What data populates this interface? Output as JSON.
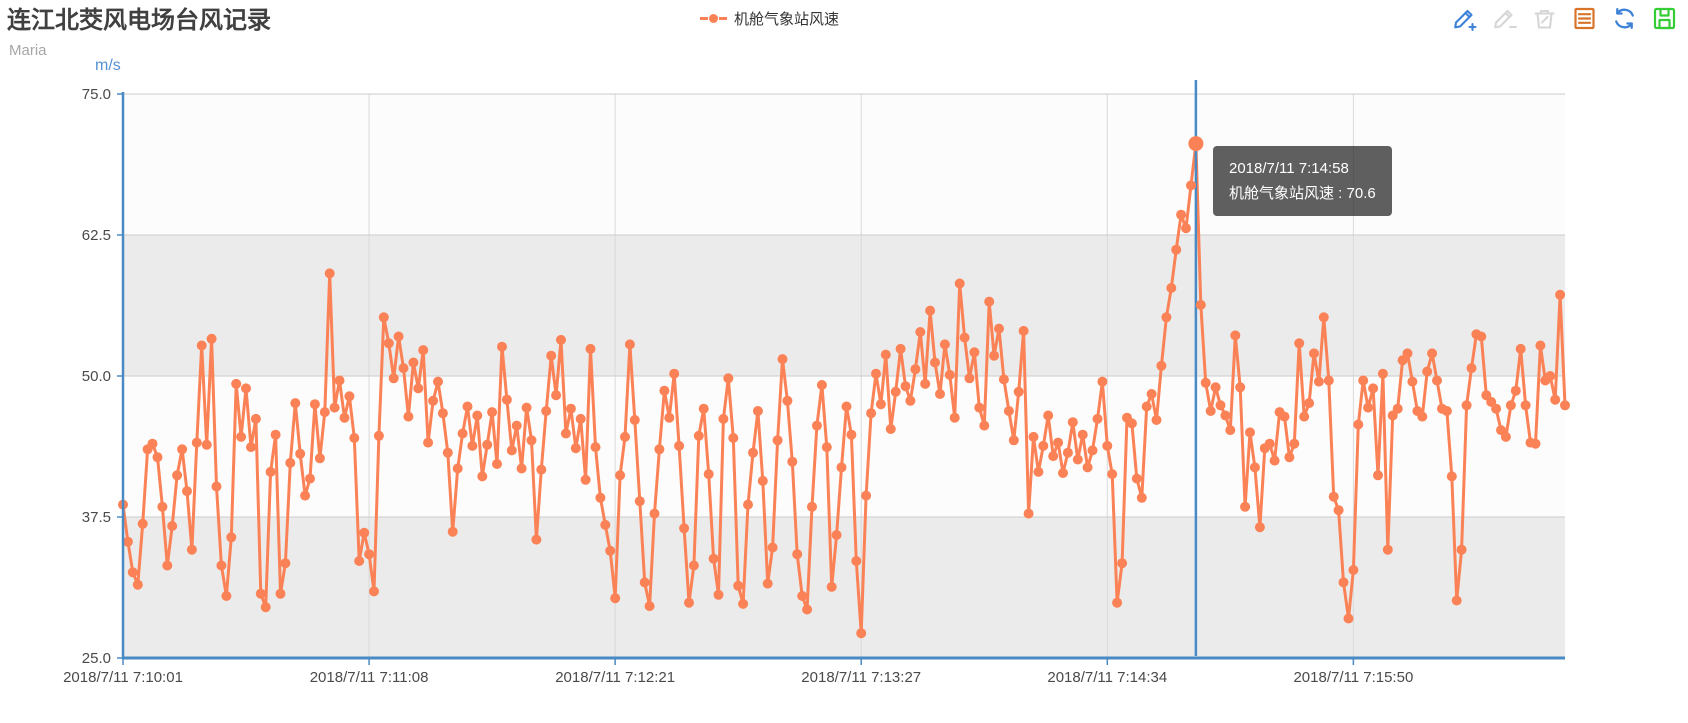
{
  "header": {
    "title": "连江北茭风电场台风记录",
    "subtitle": "Maria"
  },
  "legend": {
    "series_label": "机舱气象站风速"
  },
  "toolbar": {
    "icons": [
      {
        "name": "annotate-add-pencil-icon",
        "color": "#3e82d8"
      },
      {
        "name": "annotate-edit-pencil-icon",
        "color": "#d6d6d6"
      },
      {
        "name": "annotate-clear-trash-icon",
        "color": "#d6d6d6"
      },
      {
        "name": "data-view-icon",
        "color": "#d8742a"
      },
      {
        "name": "restore-refresh-icon",
        "color": "#3e82d8"
      },
      {
        "name": "save-image-icon",
        "color": "#35cd35"
      }
    ]
  },
  "tooltip": {
    "line1": "2018/7/11 7:14:58",
    "line2": "机舱气象站风速 : 70.6"
  },
  "colors": {
    "series": "#fb8256",
    "axis": "#4a8ac4",
    "grid_horizontal": "#cccccc",
    "grid_vertical": "#d9d9d9",
    "band_light": "#fcfcfc",
    "band_gray": "#ebebeb",
    "tick_label": "#4a4a4a",
    "pointer": "#4a8ac4",
    "tooltip_bg": "rgba(50,50,50,0.78)"
  },
  "chart_data": {
    "type": "line",
    "title": "连江北茭风电场台风记录",
    "subtitle": "Maria",
    "ylabel": "m/s",
    "legend_position": "top-center",
    "grid": {
      "split_area_alternating": true,
      "horizontal_gridlines": true,
      "vertical_gridlines": true
    },
    "y": {
      "min": 25,
      "max": 75,
      "tick_values": [
        75.0,
        62.5,
        50.0,
        37.5,
        25.0
      ],
      "tick_labels": [
        "75.0",
        "62.5",
        "50.0",
        "37.5",
        "25.0"
      ]
    },
    "x": {
      "tick_labels": [
        "2018/7/11 7:10:01",
        "2018/7/11 7:11:08",
        "2018/7/11 7:12:21",
        "2018/7/11 7:13:27",
        "2018/7/11 7:14:34",
        "2018/7/11 7:15:50"
      ],
      "tick_indices": [
        0,
        50,
        100,
        150,
        200,
        250
      ]
    },
    "highlight": {
      "index": 218,
      "time": "2018/7/11 7:14:58",
      "value": 70.6
    },
    "series": [
      {
        "name": "机舱气象站风速",
        "color": "#fb8256",
        "values": [
          38.6,
          35.3,
          32.6,
          31.5,
          36.9,
          43.5,
          44.0,
          42.8,
          38.4,
          33.2,
          36.7,
          41.2,
          43.5,
          39.8,
          34.6,
          44.1,
          52.7,
          43.9,
          53.3,
          40.2,
          33.2,
          30.5,
          35.7,
          49.3,
          44.6,
          48.9,
          43.7,
          46.2,
          30.7,
          29.5,
          41.5,
          44.8,
          30.7,
          33.4,
          42.3,
          47.6,
          43.1,
          39.4,
          40.9,
          47.5,
          42.7,
          46.8,
          59.1,
          47.2,
          49.6,
          46.3,
          48.2,
          44.5,
          33.6,
          36.1,
          34.2,
          30.9,
          44.7,
          55.2,
          52.9,
          49.8,
          53.5,
          50.7,
          46.4,
          51.2,
          48.9,
          52.3,
          44.1,
          47.8,
          49.5,
          46.7,
          43.2,
          36.2,
          41.8,
          44.9,
          47.3,
          43.8,
          46.5,
          41.1,
          43.9,
          46.8,
          42.2,
          52.6,
          47.9,
          43.4,
          45.6,
          41.8,
          47.2,
          44.3,
          35.5,
          41.7,
          46.9,
          51.8,
          48.3,
          53.2,
          44.9,
          47.1,
          43.6,
          46.2,
          40.8,
          52.4,
          43.7,
          39.2,
          36.8,
          34.5,
          30.3,
          41.2,
          44.6,
          52.8,
          46.1,
          38.9,
          31.7,
          29.6,
          37.8,
          43.5,
          48.7,
          46.3,
          50.2,
          43.8,
          36.5,
          29.9,
          33.2,
          44.7,
          47.1,
          41.3,
          33.8,
          30.6,
          46.2,
          49.8,
          44.5,
          31.4,
          29.8,
          38.6,
          43.2,
          46.9,
          40.7,
          31.6,
          34.8,
          44.3,
          51.5,
          47.8,
          42.4,
          34.2,
          30.5,
          29.3,
          38.4,
          45.6,
          49.2,
          43.7,
          31.3,
          35.9,
          41.9,
          47.3,
          44.8,
          33.6,
          27.2,
          39.4,
          46.7,
          50.2,
          47.5,
          51.9,
          45.3,
          48.6,
          52.4,
          49.1,
          47.8,
          50.6,
          53.9,
          49.3,
          55.8,
          51.2,
          48.4,
          52.8,
          50.1,
          46.3,
          58.2,
          53.4,
          49.8,
          52.1,
          47.2,
          45.6,
          56.6,
          51.8,
          54.2,
          49.7,
          46.9,
          44.3,
          48.6,
          54.0,
          37.8,
          44.6,
          41.5,
          43.8,
          46.5,
          42.9,
          44.1,
          41.4,
          43.2,
          45.9,
          42.6,
          44.8,
          41.9,
          43.4,
          46.2,
          49.5,
          43.8,
          41.3,
          29.9,
          33.4,
          46.3,
          45.8,
          40.9,
          39.2,
          47.3,
          48.4,
          46.1,
          50.9,
          55.2,
          57.8,
          61.2,
          64.3,
          63.1,
          66.9,
          70.6,
          56.3,
          49.4,
          46.9,
          49.0,
          47.4,
          46.5,
          45.2,
          53.6,
          49.0,
          38.4,
          45.0,
          41.9,
          36.6,
          43.6,
          44.0,
          42.5,
          46.8,
          46.4,
          42.8,
          44.0,
          52.9,
          46.4,
          47.6,
          52.0,
          49.5,
          55.2,
          49.6,
          39.3,
          38.1,
          31.7,
          28.5,
          32.8,
          45.7,
          49.6,
          47.2,
          48.9,
          41.2,
          50.2,
          34.6,
          46.5,
          47.1,
          51.4,
          52.0,
          49.5,
          46.9,
          46.4,
          50.4,
          52.0,
          49.6,
          47.1,
          46.9,
          41.1,
          30.1,
          34.6,
          47.4,
          50.7,
          53.7,
          53.5,
          48.3,
          47.7,
          47.1,
          45.2,
          44.6,
          47.4,
          48.7,
          52.4,
          47.4,
          44.1,
          44.0,
          52.7,
          49.6,
          50.0,
          47.9,
          57.2,
          47.4
        ]
      }
    ]
  }
}
